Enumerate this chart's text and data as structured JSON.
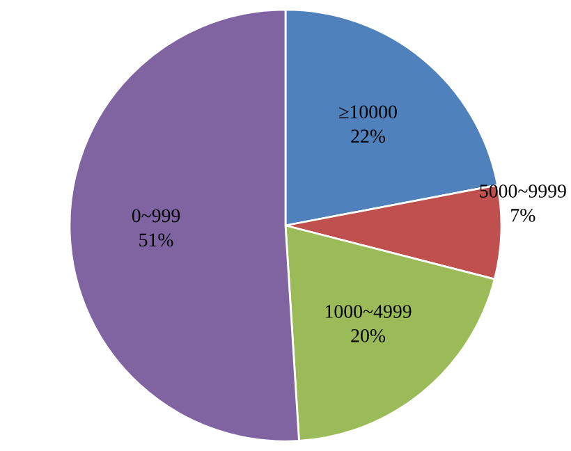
{
  "chart_data": {
    "type": "pie",
    "categories": [
      "≥10000",
      "5000~9999",
      "1000~4999",
      "0~999"
    ],
    "values": [
      22,
      7,
      20,
      51
    ],
    "colors": [
      "#4f81bd",
      "#c0504d",
      "#9bbb59",
      "#8064a2"
    ],
    "value_labels": [
      "22%",
      "7%",
      "20%",
      "51%"
    ],
    "legend": false
  }
}
